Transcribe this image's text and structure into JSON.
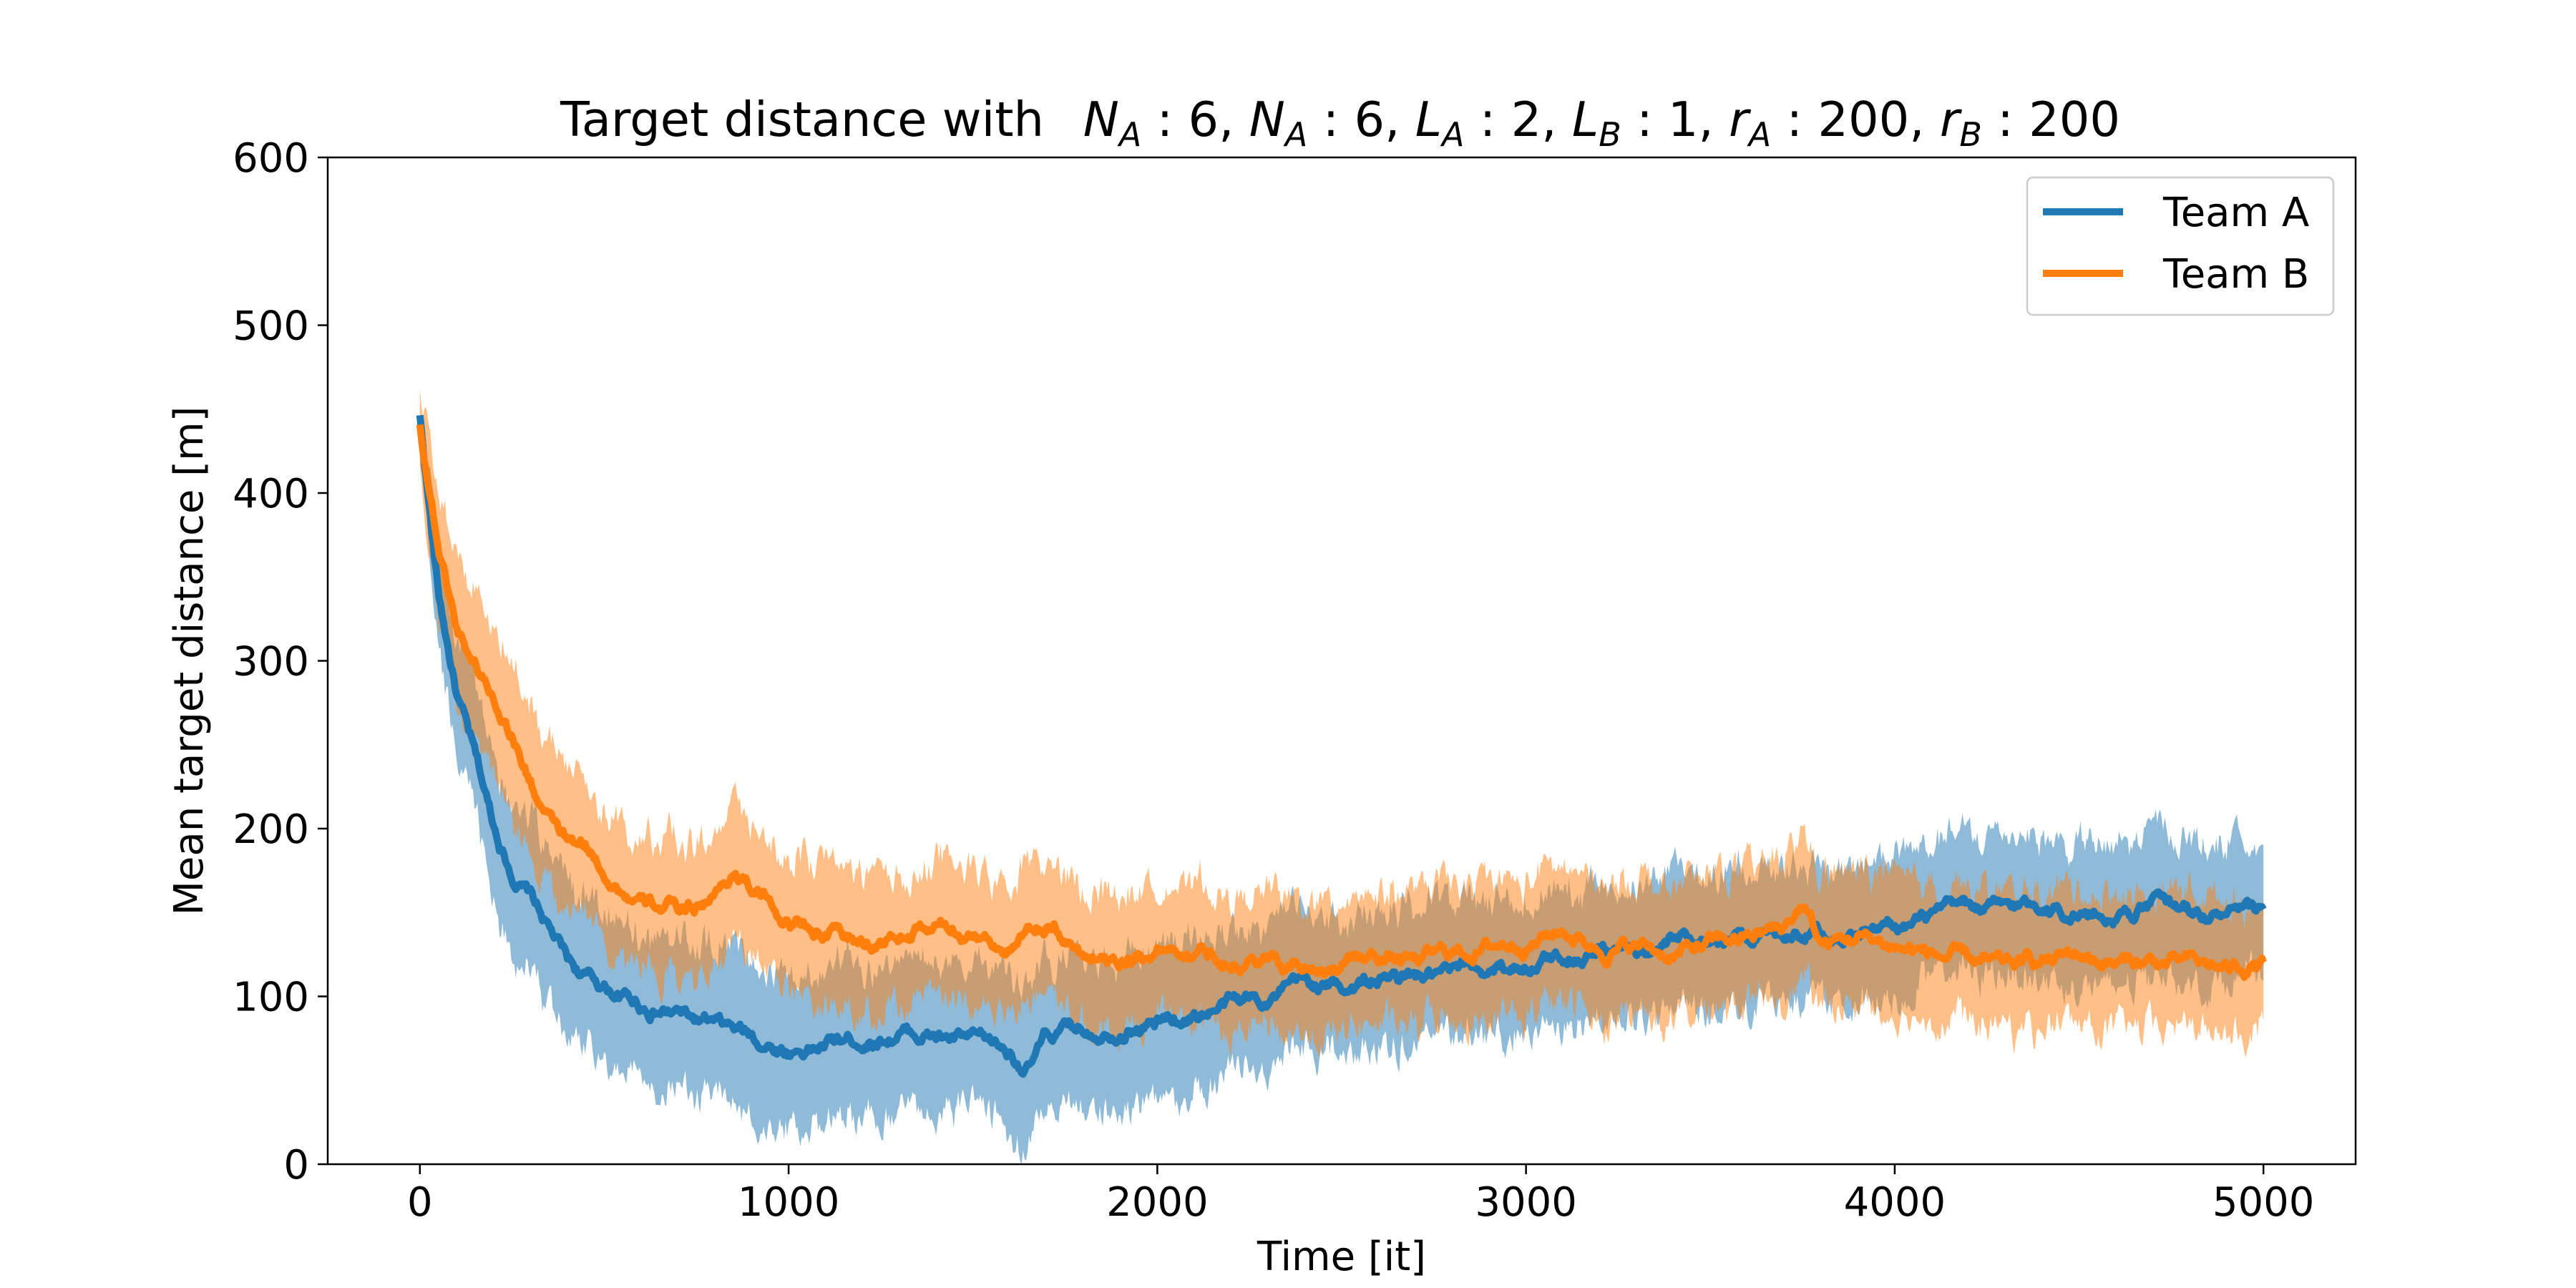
{
  "chart_data": {
    "type": "line",
    "title": "Target distance with  N_A: 6, N_A: 6, L_A: 2, L_B: 1, r_A: 200, r_B: 200",
    "title_parts": {
      "prefix": "Target distance with",
      "segments": [
        {
          "sym": "N",
          "sub": "A",
          "val": "6"
        },
        {
          "sym": "N",
          "sub": "A",
          "val": "6"
        },
        {
          "sym": "L",
          "sub": "A",
          "val": "2"
        },
        {
          "sym": "L",
          "sub": "B",
          "val": "1"
        },
        {
          "sym": "r",
          "sub": "A",
          "val": "200"
        },
        {
          "sym": "r",
          "sub": "B",
          "val": "200"
        }
      ]
    },
    "xlabel": "Time [it]",
    "ylabel": "Mean target distance [m]",
    "xlim": [
      -250,
      5250
    ],
    "ylim": [
      0,
      600
    ],
    "xticks": [
      0,
      1000,
      2000,
      3000,
      4000,
      5000
    ],
    "yticks": [
      0,
      100,
      200,
      300,
      400,
      500,
      600
    ],
    "grid": false,
    "legend_position": "top-right",
    "series": [
      {
        "name": "Team A",
        "color": "#1f77b4",
        "x": [
          0,
          50,
          100,
          150,
          200,
          250,
          300,
          350,
          400,
          450,
          500,
          600,
          700,
          800,
          900,
          1000,
          1100,
          1200,
          1300,
          1400,
          1500,
          1600,
          1650,
          1700,
          1800,
          1900,
          2000,
          2100,
          2200,
          2300,
          2400,
          2500,
          2600,
          2700,
          2800,
          2900,
          3000,
          3100,
          3200,
          3300,
          3400,
          3500,
          3600,
          3700,
          3800,
          3900,
          4000,
          4100,
          4200,
          4300,
          4400,
          4500,
          4600,
          4700,
          4800,
          4900,
          5000
        ],
        "mean": [
          445,
          340,
          280,
          240,
          200,
          175,
          160,
          140,
          120,
          110,
          105,
          95,
          90,
          80,
          75,
          68,
          72,
          75,
          80,
          76,
          72,
          66,
          58,
          75,
          80,
          85,
          85,
          90,
          95,
          100,
          105,
          105,
          110,
          110,
          110,
          115,
          120,
          125,
          130,
          130,
          132,
          135,
          138,
          140,
          143,
          140,
          142,
          145,
          150,
          150,
          155,
          152,
          150,
          155,
          150,
          148,
          145
        ],
        "band": [
          5,
          30,
          35,
          40,
          42,
          45,
          45,
          45,
          45,
          45,
          45,
          45,
          45,
          45,
          45,
          45,
          45,
          45,
          45,
          45,
          45,
          45,
          45,
          45,
          45,
          45,
          45,
          45,
          42,
          40,
          40,
          40,
          40,
          40,
          40,
          40,
          40,
          40,
          40,
          40,
          40,
          40,
          40,
          40,
          40,
          40,
          40,
          40,
          40,
          42,
          42,
          42,
          42,
          42,
          42,
          42,
          42
        ]
      },
      {
        "name": "Team B",
        "color": "#ff7f0e",
        "x": [
          0,
          50,
          100,
          150,
          200,
          250,
          300,
          350,
          400,
          450,
          500,
          600,
          700,
          800,
          850,
          900,
          1000,
          1100,
          1200,
          1300,
          1400,
          1500,
          1600,
          1700,
          1800,
          1900,
          2000,
          2100,
          2200,
          2300,
          2400,
          2500,
          2600,
          2700,
          2800,
          2900,
          3000,
          3100,
          3200,
          3300,
          3400,
          3500,
          3600,
          3700,
          3750,
          3800,
          3900,
          4000,
          4100,
          4200,
          4300,
          4400,
          4500,
          4600,
          4700,
          4800,
          4900,
          5000
        ],
        "mean": [
          440,
          370,
          320,
          300,
          280,
          260,
          230,
          205,
          190,
          185,
          175,
          155,
          150,
          160,
          175,
          165,
          145,
          140,
          130,
          135,
          140,
          140,
          130,
          140,
          125,
          125,
          130,
          130,
          125,
          120,
          120,
          120,
          125,
          120,
          125,
          130,
          135,
          140,
          130,
          130,
          125,
          130,
          135,
          140,
          155,
          130,
          135,
          130,
          125,
          120,
          115,
          120,
          125,
          120,
          120,
          118,
          115,
          120
        ],
        "band": [
          25,
          40,
          45,
          45,
          45,
          45,
          45,
          45,
          45,
          40,
          40,
          40,
          40,
          40,
          40,
          40,
          40,
          40,
          40,
          40,
          40,
          40,
          40,
          40,
          40,
          40,
          40,
          40,
          40,
          40,
          40,
          40,
          40,
          40,
          40,
          40,
          40,
          40,
          40,
          40,
          40,
          40,
          40,
          40,
          45,
          40,
          40,
          40,
          40,
          40,
          40,
          40,
          40,
          40,
          40,
          40,
          40,
          40
        ]
      }
    ]
  }
}
